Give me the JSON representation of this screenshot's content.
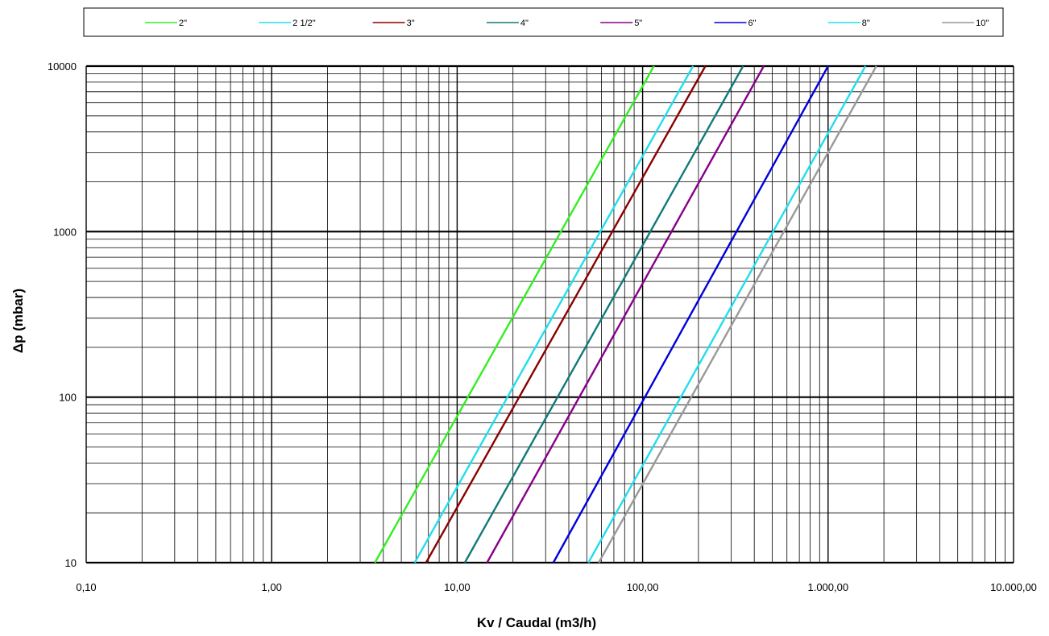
{
  "chart_data": {
    "type": "line",
    "xlabel": "Kv / Caudal (m3/h)",
    "ylabel": "Δp (mbar)",
    "x_scale": "log",
    "y_scale": "log",
    "xlim": [
      0.1,
      10000
    ],
    "ylim": [
      10,
      10000
    ],
    "x_tick_labels": [
      "0,10",
      "1,00",
      "10,00",
      "100,00",
      "1.000,00",
      "10.000,00"
    ],
    "y_tick_labels": [
      "10",
      "100",
      "1000",
      "10000"
    ],
    "grid": true,
    "legend_position": "top",
    "series": [
      {
        "name": "2\"",
        "color": "#33ee22",
        "points": [
          [
            3.6,
            10
          ],
          [
            115,
            10000
          ]
        ]
      },
      {
        "name": "2 1/2\"",
        "color": "#22ddee",
        "points": [
          [
            5.9,
            10
          ],
          [
            187,
            10000
          ]
        ]
      },
      {
        "name": "3\"",
        "color": "#8b0000",
        "points": [
          [
            6.8,
            10
          ],
          [
            218,
            10000
          ]
        ]
      },
      {
        "name": "4\"",
        "color": "#117a7a",
        "points": [
          [
            11,
            10
          ],
          [
            348,
            10000
          ]
        ]
      },
      {
        "name": "5\"",
        "color": "#880088",
        "points": [
          [
            14.5,
            10
          ],
          [
            450,
            10000
          ]
        ]
      },
      {
        "name": "6\"",
        "color": "#0000dd",
        "points": [
          [
            33,
            10
          ],
          [
            1000,
            10000
          ]
        ]
      },
      {
        "name": "8\"",
        "color": "#22ddee",
        "points": [
          [
            51,
            10
          ],
          [
            1590,
            10000
          ]
        ]
      },
      {
        "name": "10\"",
        "color": "#999999",
        "points": [
          [
            58,
            10
          ],
          [
            1820,
            10000
          ]
        ]
      }
    ]
  }
}
